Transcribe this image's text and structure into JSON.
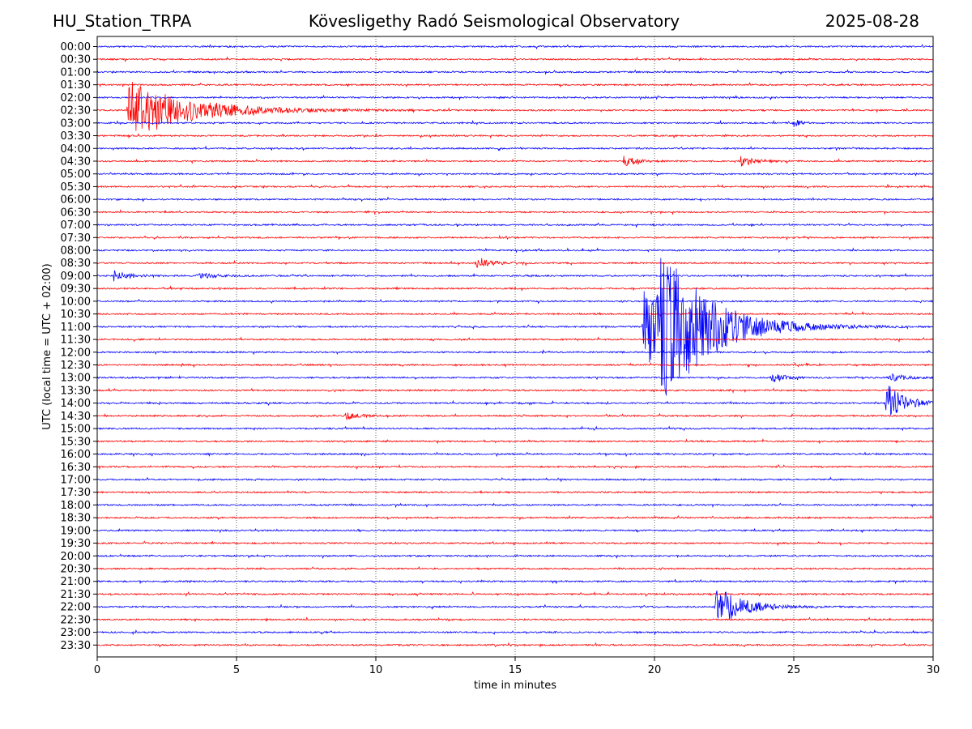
{
  "header": {
    "station": "HU_Station_TRPA",
    "title": "Kövesligethy Radó Seismological Observatory",
    "date": "2025-08-28"
  },
  "chart_data": {
    "type": "line",
    "title": "Kövesligethy Radó Seismological Observatory",
    "xlabel": "time in minutes",
    "ylabel": "UTC (local time = UTC + 02:00)",
    "xlim": [
      0,
      30
    ],
    "x_ticks": [
      "0",
      "5",
      "10",
      "15",
      "20",
      "25",
      "30"
    ],
    "x_tick_values": [
      0,
      5,
      10,
      15,
      20,
      25,
      30
    ],
    "grid_x": true,
    "grid_style": "dotted",
    "trace_colors": [
      "#0000ff",
      "#ff0000"
    ],
    "rows": [
      "00:00",
      "00:30",
      "01:00",
      "01:30",
      "02:00",
      "02:30",
      "03:00",
      "03:30",
      "04:00",
      "04:30",
      "05:00",
      "05:30",
      "06:00",
      "06:30",
      "07:00",
      "07:30",
      "08:00",
      "08:30",
      "09:00",
      "09:30",
      "10:00",
      "10:30",
      "11:00",
      "11:30",
      "12:00",
      "12:30",
      "13:00",
      "13:30",
      "14:00",
      "14:30",
      "15:00",
      "15:30",
      "16:00",
      "16:30",
      "17:00",
      "17:30",
      "18:00",
      "18:30",
      "19:00",
      "19:30",
      "20:00",
      "20:30",
      "21:00",
      "21:30",
      "22:00",
      "22:30",
      "23:00",
      "23:30"
    ],
    "events": [
      {
        "row": "02:30",
        "t": 1.1,
        "amp": 38,
        "dur": 6
      },
      {
        "row": "03:00",
        "t": 25.0,
        "amp": 6,
        "dur": 0.6
      },
      {
        "row": "04:30",
        "t": 18.9,
        "amp": 6,
        "dur": 1.4
      },
      {
        "row": "04:30",
        "t": 23.1,
        "amp": 6,
        "dur": 1.4
      },
      {
        "row": "08:30",
        "t": 13.6,
        "amp": 6,
        "dur": 1.6
      },
      {
        "row": "09:00",
        "t": 0.6,
        "amp": 6,
        "dur": 1.6
      },
      {
        "row": "09:00",
        "t": 3.6,
        "amp": 4,
        "dur": 1.6
      },
      {
        "row": "11:00",
        "t": 19.6,
        "amp": 60,
        "dur": 4.5
      },
      {
        "row": "11:00",
        "t": 20.2,
        "amp": 70,
        "dur": 4.5
      },
      {
        "row": "13:00",
        "t": 24.2,
        "amp": 6,
        "dur": 1.2
      },
      {
        "row": "13:00",
        "t": 28.4,
        "amp": 5,
        "dur": 1.6
      },
      {
        "row": "14:00",
        "t": 28.3,
        "amp": 25,
        "dur": 1.8
      },
      {
        "row": "14:30",
        "t": 8.9,
        "amp": 5,
        "dur": 1.2
      },
      {
        "row": "22:00",
        "t": 22.2,
        "amp": 28,
        "dur": 2.5
      }
    ]
  }
}
